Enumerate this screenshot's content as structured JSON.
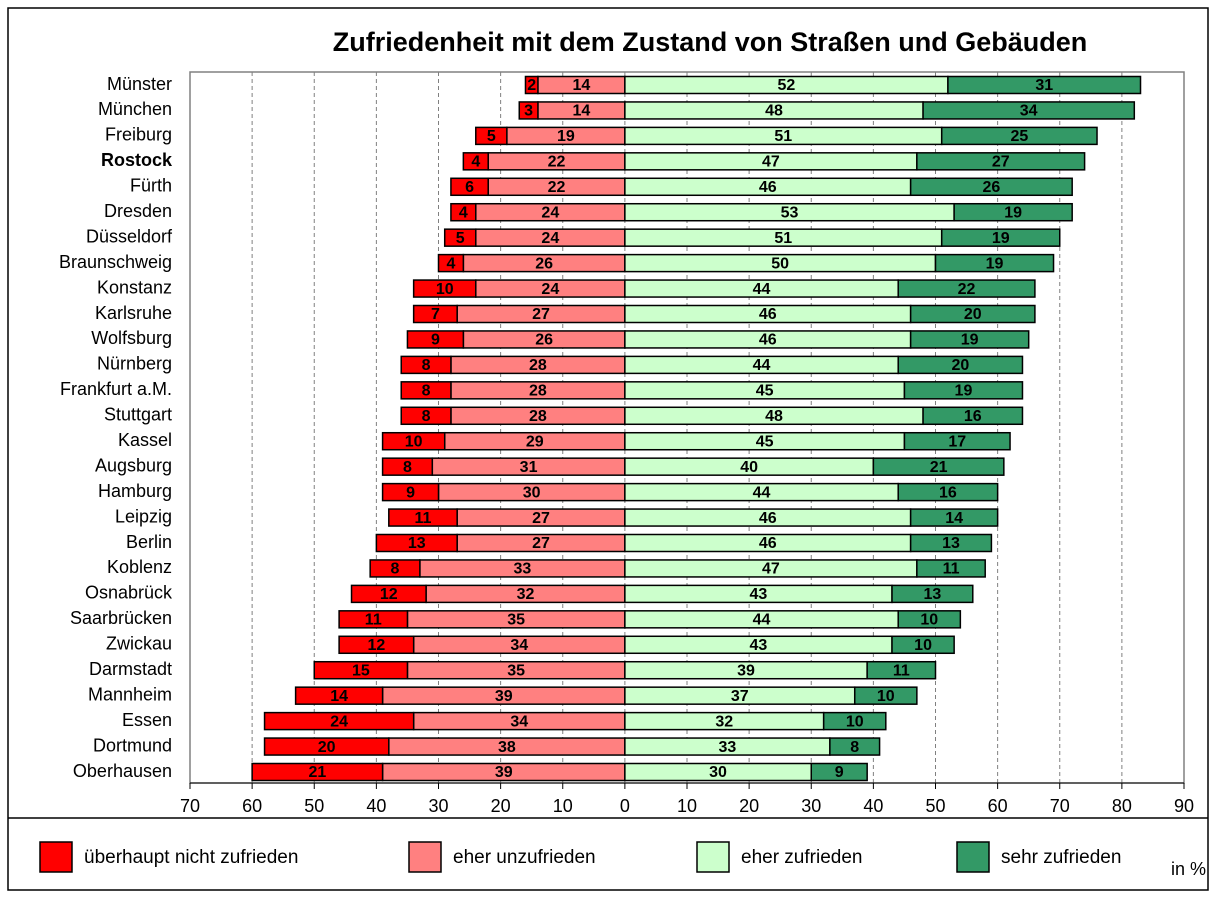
{
  "chart_data": {
    "type": "diverging_bar",
    "title": "Zufriedenheit mit dem Zustand von Straßen und Gebäuden",
    "x_axis_label": "in %",
    "categories": [
      "Münster",
      "München",
      "Freiburg",
      "Rostock",
      "Fürth",
      "Dresden",
      "Düsseldorf",
      "Braunschweig",
      "Konstanz",
      "Karlsruhe",
      "Wolfsburg",
      "Nürnberg",
      "Frankfurt a.M.",
      "Stuttgart",
      "Kassel",
      "Augsburg",
      "Hamburg",
      "Leipzig",
      "Berlin",
      "Koblenz",
      "Osnabrück",
      "Saarbrücken",
      "Zwickau",
      "Darmstadt",
      "Mannheim",
      "Essen",
      "Dortmund",
      "Oberhausen"
    ],
    "category_label_colors": [
      "#000000",
      "#000000",
      "#000000",
      "#ff0000",
      "#000000",
      "#000000",
      "#000000",
      "#000000",
      "#000000",
      "#000000",
      "#000000",
      "#000000",
      "#000000",
      "#000000",
      "#000000",
      "#000000",
      "#000000",
      "#000000",
      "#000000",
      "#000000",
      "#000000",
      "#000000",
      "#000000",
      "#000000",
      "#000000",
      "#000000",
      "#000000",
      "#000000"
    ],
    "series": [
      {
        "name": "überhaupt nicht zufrieden",
        "color": "#ff0000",
        "label_color": "#ffffff",
        "values": [
          -2,
          -3,
          -5,
          -4,
          -6,
          -4,
          -5,
          -4,
          -10,
          -7,
          -9,
          -8,
          -8,
          -8,
          -10,
          -8,
          -9,
          -11,
          -13,
          -8,
          -12,
          -11,
          -12,
          -15,
          -14,
          -24,
          -20,
          -21
        ],
        "value_labels": [
          "2",
          "3",
          "5",
          "4",
          "6",
          "4",
          "5",
          "4",
          "10",
          "7",
          "9",
          "8",
          "8",
          "8",
          "10",
          "8",
          "9",
          "11",
          "13",
          "8",
          "12",
          "11",
          "12",
          "15",
          "14",
          "24",
          "20",
          "21"
        ]
      },
      {
        "name": "eher unzufrieden",
        "color": "#ff8080",
        "label_color": "#000000",
        "values": [
          -14,
          -14,
          -19,
          -22,
          -22,
          -24,
          -24,
          -26,
          -24,
          -27,
          -26,
          -28,
          -28,
          -28,
          -29,
          -31,
          -30,
          -27,
          -27,
          -33,
          -32,
          -35,
          -34,
          -35,
          -39,
          -34,
          -38,
          -39
        ],
        "value_labels": [
          "14",
          "14",
          "19",
          "22",
          "22",
          "24",
          "24",
          "26",
          "24",
          "27",
          "26",
          "28",
          "28",
          "28",
          "29",
          "31",
          "30",
          "27",
          "27",
          "33",
          "32",
          "35",
          "34",
          "35",
          "39",
          "34",
          "38",
          "39"
        ]
      },
      {
        "name": "eher zufrieden",
        "color": "#ccffcc",
        "label_color": "#000000",
        "values": [
          52,
          48,
          51,
          47,
          46,
          53,
          51,
          50,
          44,
          46,
          46,
          44,
          45,
          48,
          45,
          40,
          44,
          46,
          46,
          47,
          43,
          44,
          43,
          39,
          37,
          32,
          33,
          30
        ]
      },
      {
        "name": "sehr zufrieden",
        "color": "#339966",
        "label_color": "#ffffff",
        "values": [
          31,
          34,
          25,
          27,
          26,
          19,
          19,
          19,
          22,
          20,
          19,
          20,
          19,
          16,
          17,
          21,
          16,
          14,
          13,
          11,
          13,
          10,
          10,
          11,
          10,
          10,
          8,
          9
        ]
      }
    ],
    "xlim": [
      -70,
      90
    ],
    "xticks": [
      {
        "value": -70,
        "label": "70"
      },
      {
        "value": -60,
        "label": "60"
      },
      {
        "value": -50,
        "label": "50"
      },
      {
        "value": -40,
        "label": "40"
      },
      {
        "value": -30,
        "label": "30"
      },
      {
        "value": -20,
        "label": "20"
      },
      {
        "value": -10,
        "label": "10"
      },
      0,
      10,
      20,
      30,
      40,
      50,
      60,
      70,
      80,
      90
    ],
    "grid": true
  }
}
